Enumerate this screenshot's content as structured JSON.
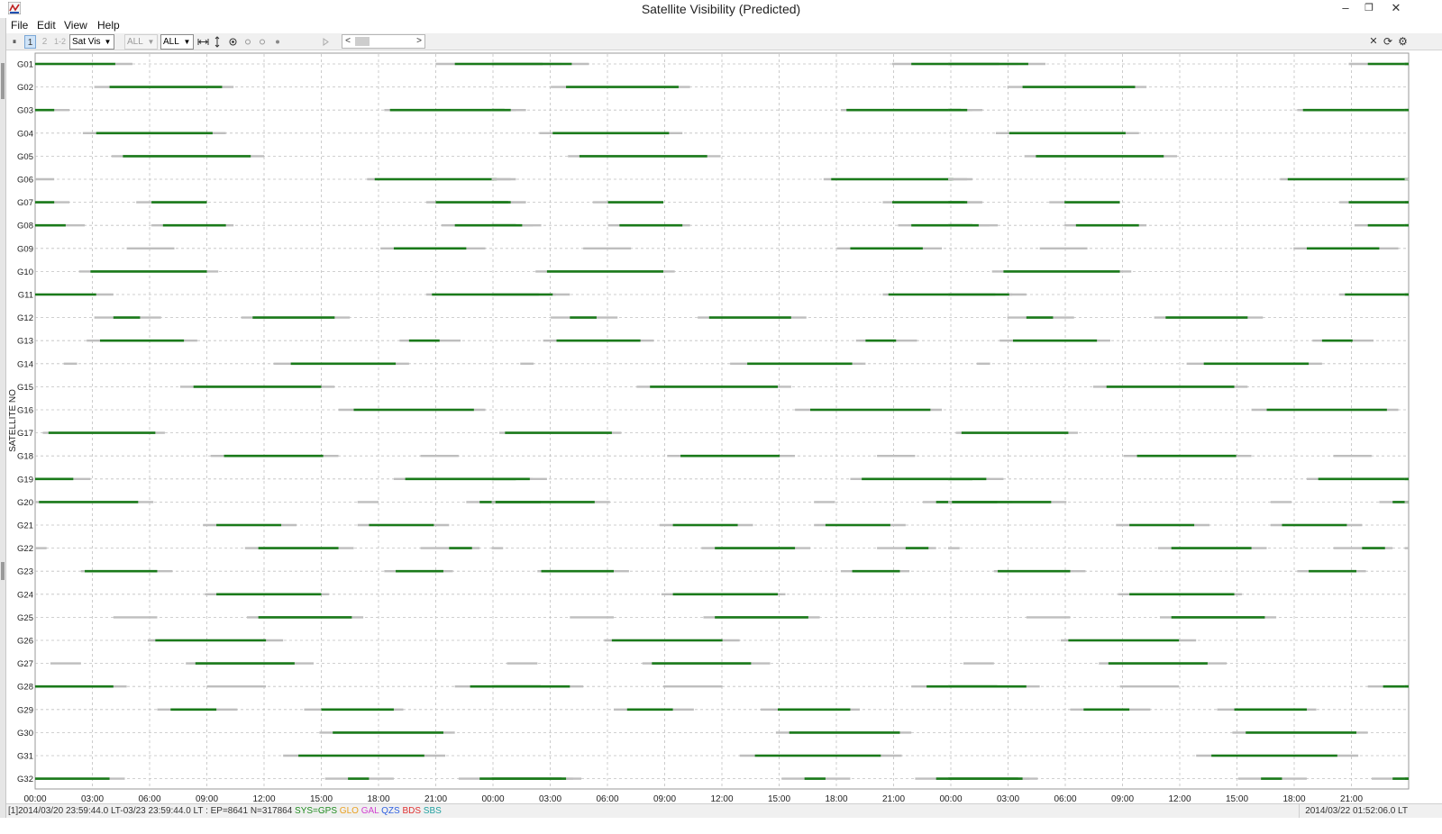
{
  "window": {
    "title": "Satellite Visibility (Predicted)"
  },
  "menu": [
    "File",
    "Edit",
    "View",
    "Help"
  ],
  "toolbar": {
    "pause_label": "⏸",
    "rcv1": "1",
    "rcv2": "2",
    "rcv12": "1-2",
    "plot_type": "Sat Vis",
    "sys_select": "ALL",
    "sat_select": "ALL",
    "scroll_left": "<",
    "scroll_right": ">",
    "close": "✕",
    "reload": "⟳",
    "options": "⚙"
  },
  "window_controls": {
    "minimize": "–",
    "restore": "❐",
    "close": "✕"
  },
  "status": {
    "left_prefix": "[1]2014/03/20 23:59:44.0 LT-03/23 23:59:44.0 LT : EP=8641 N=317864 ",
    "systems": [
      {
        "label": "SYS=GPS",
        "color": "#1e8a1e"
      },
      {
        "label": "GLO",
        "color": "#e8a020"
      },
      {
        "label": "GAL",
        "color": "#d040d0"
      },
      {
        "label": "QZS",
        "color": "#3060e0"
      },
      {
        "label": "BDS",
        "color": "#e03030"
      },
      {
        "label": "SBS",
        "color": "#20a0a0"
      }
    ],
    "right": "2014/03/22 01:52:06.0 LT"
  },
  "colors": {
    "visible": "#1a7a1a",
    "low_elevation": "#bebebe",
    "grid": "#c0c0c0"
  },
  "chart_data": {
    "type": "timeline",
    "ylabel": "SATELLITE NO",
    "xlabel": "",
    "x_range_hours": [
      0,
      72
    ],
    "x_tick_labels": [
      "00:00",
      "03:00",
      "06:00",
      "09:00",
      "12:00",
      "15:00",
      "18:00",
      "21:00",
      "00:00",
      "03:00",
      "06:00",
      "09:00",
      "12:00",
      "15:00",
      "18:00",
      "21:00",
      "00:00",
      "03:00",
      "06:00",
      "09:00",
      "12:00",
      "15:00",
      "18:00",
      "21:00"
    ],
    "period_hours": 23.93,
    "satellites": [
      {
        "name": "G01",
        "passes": [
          [
            0,
            5.1,
            [
              0,
              4.2
            ]
          ],
          [
            21.0,
            27.6,
            [
              22.0,
              26.6
            ]
          ]
        ]
      },
      {
        "name": "G02",
        "passes": [
          [
            3.1,
            10.4,
            [
              3.9,
              9.8
            ]
          ]
        ]
      },
      {
        "name": "G03",
        "passes": [
          [
            0,
            1.8,
            [
              0,
              1.0
            ]
          ],
          [
            18.3,
            25.2,
            [
              18.6,
              24.6
            ]
          ]
        ]
      },
      {
        "name": "G04",
        "passes": [
          [
            2.5,
            10.0,
            [
              3.2,
              9.3
            ]
          ]
        ]
      },
      {
        "name": "G05",
        "passes": [
          [
            4.0,
            12.0,
            [
              4.6,
              11.3
            ]
          ]
        ]
      },
      {
        "name": "G06",
        "passes": [
          [
            0,
            1.0,
            [
              0.4,
              0.4
            ]
          ],
          [
            17.4,
            25.2,
            [
              17.8,
              24.2
            ]
          ]
        ]
      },
      {
        "name": "G07",
        "passes": [
          [
            0,
            1.8,
            [
              0,
              1.0
            ]
          ],
          [
            5.3,
            9.0,
            [
              6.1,
              9.0
            ]
          ],
          [
            20.5,
            25.7,
            [
              21.0,
              24.8
            ]
          ]
        ]
      },
      {
        "name": "G08",
        "passes": [
          [
            0,
            2.6,
            [
              0,
              1.6
            ]
          ],
          [
            6.1,
            10.4,
            [
              6.7,
              10.0
            ]
          ],
          [
            21.3,
            26.1,
            [
              22.0,
              25.2
            ]
          ]
        ]
      },
      {
        "name": "G09",
        "passes": [
          [
            4.8,
            7.3,
            [
              7.3,
              7.3
            ]
          ],
          [
            18.1,
            23.6,
            [
              18.8,
              22.6
            ]
          ]
        ]
      },
      {
        "name": "G10",
        "passes": [
          [
            2.3,
            9.6,
            [
              2.9,
              9.0
            ]
          ]
        ]
      },
      {
        "name": "G11",
        "passes": [
          [
            0,
            4.1,
            [
              0,
              3.2
            ]
          ],
          [
            20.5,
            27.3,
            [
              20.8,
              26.4
            ]
          ]
        ]
      },
      {
        "name": "G12",
        "passes": [
          [
            3.1,
            6.6,
            [
              4.1,
              5.5
            ]
          ],
          [
            10.8,
            16.5,
            [
              11.4,
              15.7
            ]
          ]
        ]
      },
      {
        "name": "G13",
        "passes": [
          [
            2.7,
            8.5,
            [
              3.4,
              7.8
            ]
          ],
          [
            19.1,
            22.3,
            [
              19.6,
              21.2
            ]
          ]
        ]
      },
      {
        "name": "G14",
        "passes": [
          [
            1.5,
            2.2,
            [
              2.2,
              2.2
            ]
          ],
          [
            12.5,
            19.6,
            [
              13.4,
              18.9
            ]
          ]
        ]
      },
      {
        "name": "G15",
        "passes": [
          [
            7.6,
            15.7,
            [
              8.3,
              15.0
            ]
          ]
        ]
      },
      {
        "name": "G16",
        "passes": [
          [
            15.9,
            23.6,
            [
              16.7,
              23.0
            ]
          ]
        ]
      },
      {
        "name": "G17",
        "passes": [
          [
            0.4,
            6.8,
            [
              0.7,
              6.3
            ]
          ]
        ]
      },
      {
        "name": "G18",
        "passes": [
          [
            9.2,
            15.9,
            [
              9.9,
              15.1
            ]
          ],
          [
            20.2,
            22.2,
            [
              22.2,
              22.2
            ]
          ]
        ]
      },
      {
        "name": "G19",
        "passes": [
          [
            0,
            2.9,
            [
              0,
              2.0
            ]
          ],
          [
            18.8,
            26.1,
            [
              19.4,
              25.2
            ]
          ]
        ]
      },
      {
        "name": "G20",
        "passes": [
          [
            0,
            6.2,
            [
              0.2,
              5.4
            ]
          ],
          [
            16.9,
            18.0,
            [
              18.0,
              18.0
            ]
          ],
          [
            22.6,
            27.3,
            [
              23.3,
              26.5
            ]
          ]
        ]
      },
      {
        "name": "G21",
        "passes": [
          [
            8.8,
            13.7,
            [
              9.5,
              12.9
            ]
          ],
          [
            16.9,
            21.7,
            [
              17.5,
              20.9
            ]
          ]
        ]
      },
      {
        "name": "G22",
        "passes": [
          [
            0,
            0.6,
            [
              0.6,
              0.6
            ]
          ],
          [
            11.0,
            16.7,
            [
              11.7,
              15.9
            ]
          ],
          [
            20.2,
            23.3,
            [
              21.7,
              22.9
            ]
          ]
        ]
      },
      {
        "name": "G23",
        "passes": [
          [
            2.4,
            7.2,
            [
              2.6,
              6.4
            ]
          ],
          [
            18.3,
            21.9,
            [
              18.9,
              21.4
            ]
          ]
        ]
      },
      {
        "name": "G24",
        "passes": [
          [
            8.9,
            15.4,
            [
              9.5,
              15.0
            ]
          ]
        ]
      },
      {
        "name": "G25",
        "passes": [
          [
            4.1,
            6.4,
            [
              6.4,
              6.4
            ]
          ],
          [
            11.1,
            17.2,
            [
              11.7,
              16.6
            ]
          ]
        ]
      },
      {
        "name": "G26",
        "passes": [
          [
            5.9,
            13.0,
            [
              6.3,
              12.1
            ]
          ]
        ]
      },
      {
        "name": "G27",
        "passes": [
          [
            0.8,
            2.4,
            [
              2.4,
              2.4
            ]
          ],
          [
            7.9,
            14.6,
            [
              8.4,
              13.6
            ]
          ]
        ]
      },
      {
        "name": "G28",
        "passes": [
          [
            0,
            4.8,
            [
              0,
              4.1
            ]
          ],
          [
            9.0,
            12.1,
            [
              12.1,
              12.1
            ]
          ],
          [
            22.0,
            27.4,
            [
              22.8,
              26.5
            ]
          ]
        ]
      },
      {
        "name": "G29",
        "passes": [
          [
            6.4,
            10.6,
            [
              7.1,
              9.5
            ]
          ],
          [
            14.1,
            19.3,
            [
              15.0,
              18.8
            ]
          ]
        ]
      },
      {
        "name": "G30",
        "passes": [
          [
            14.9,
            22.0,
            [
              15.6,
              21.4
            ]
          ]
        ]
      },
      {
        "name": "G31",
        "passes": [
          [
            13.0,
            21.5,
            [
              13.8,
              20.4
            ]
          ]
        ]
      },
      {
        "name": "G32",
        "passes": [
          [
            0,
            4.7,
            [
              0,
              3.9
            ]
          ],
          [
            15.2,
            18.8,
            [
              16.4,
              17.5
            ]
          ],
          [
            22.2,
            28.2,
            [
              23.3,
              27.6
            ]
          ]
        ]
      }
    ]
  }
}
